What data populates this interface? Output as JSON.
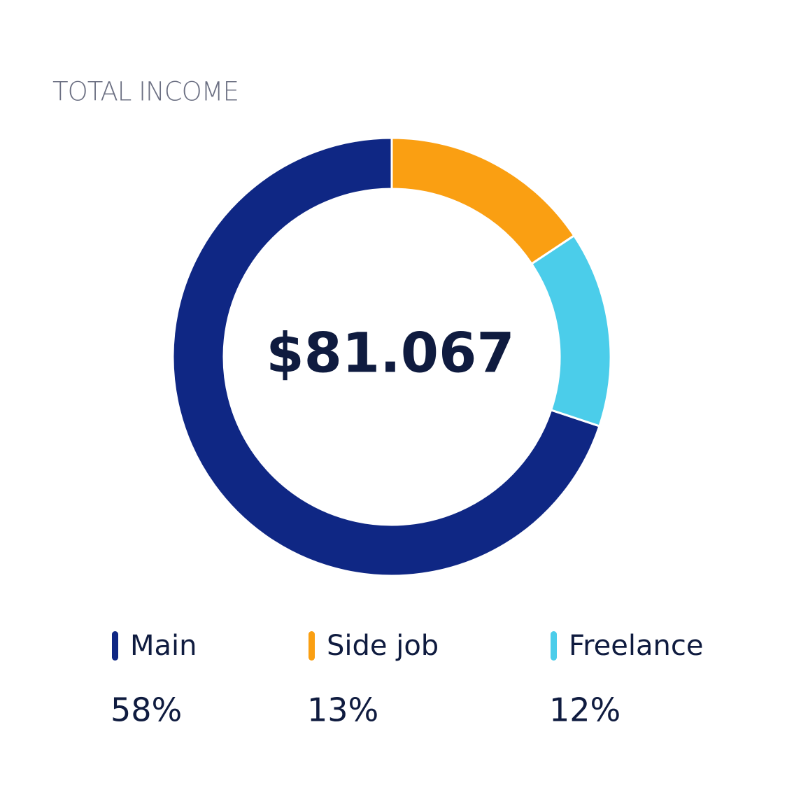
{
  "chart_data": {
    "type": "donut",
    "title": "TOTAL INCOME",
    "center_label": "$81.067",
    "categories": [
      "Main",
      "Side job",
      "Freelance"
    ],
    "values": [
      58,
      13,
      12
    ],
    "value_labels": [
      "58%",
      "13%",
      "12%"
    ],
    "colors": [
      "#0f2784",
      "#fa9f12",
      "#4bcdea"
    ]
  }
}
